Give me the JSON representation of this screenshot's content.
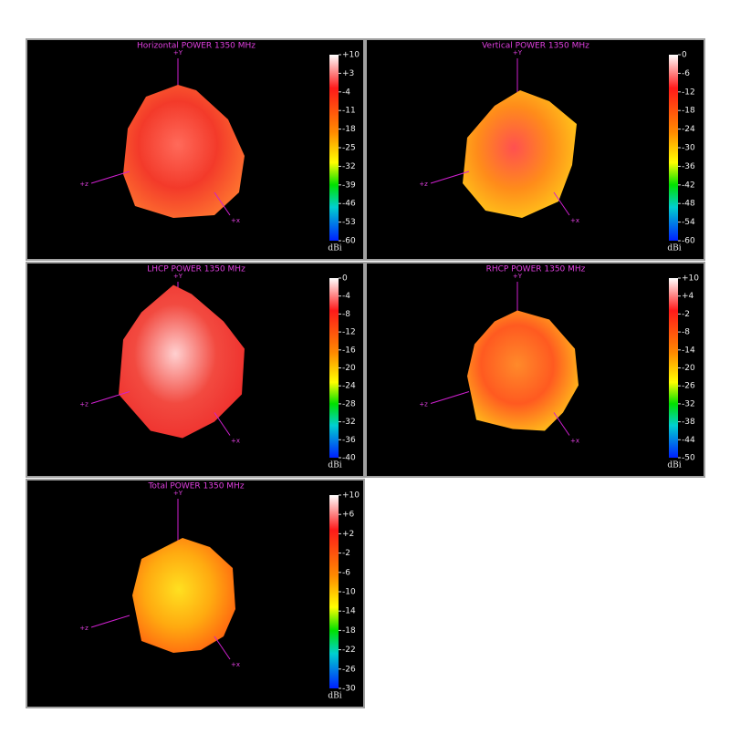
{
  "panels": [
    {
      "title": "Horizontal POWER 1350  MHz",
      "unit": "dBi",
      "axis_y": "+Y",
      "axis_z": "+z",
      "axis_x": "+x",
      "ticks": [
        {
          "value": 10,
          "label": "+10"
        },
        {
          "value": 3,
          "label": "+3"
        },
        -4,
        -11,
        -18,
        -25,
        -32,
        -39,
        -46,
        -53,
        -60
      ]
    },
    {
      "title": "Vertical POWER 1350  MHz",
      "unit": "dBi",
      "axis_y": "+Y",
      "axis_z": "+z",
      "axis_x": "+x",
      "ticks": [
        0,
        -6,
        -12,
        -18,
        -24,
        -30,
        -36,
        -42,
        -48,
        -54,
        -60
      ]
    },
    {
      "title": "LHCP POWER 1350  MHz",
      "unit": "dBi",
      "axis_y": "+Y",
      "axis_z": "+z",
      "axis_x": "+x",
      "ticks": [
        0,
        -4,
        -8,
        -12,
        -16,
        -20,
        -24,
        -28,
        -32,
        -36,
        -40
      ]
    },
    {
      "title": "RHCP POWER 1350  MHz",
      "unit": "dBi",
      "axis_y": "+Y",
      "axis_z": "+z",
      "axis_x": "+x",
      "ticks": [
        {
          "value": 10,
          "label": "+10"
        },
        {
          "value": 4,
          "label": "+4"
        },
        -2,
        -8,
        -14,
        -20,
        -26,
        -32,
        -38,
        -44,
        -50
      ]
    },
    {
      "title": "Total POWER 1350  MHz",
      "unit": "dBi",
      "axis_y": "+Y",
      "axis_z": "+z",
      "axis_x": "+x",
      "ticks": [
        {
          "value": 10,
          "label": "+10"
        },
        {
          "value": 6,
          "label": "+6"
        },
        {
          "value": 2,
          "label": "+2"
        },
        -2,
        -6,
        -10,
        -14,
        -18,
        -22,
        -26,
        -30
      ]
    }
  ]
}
